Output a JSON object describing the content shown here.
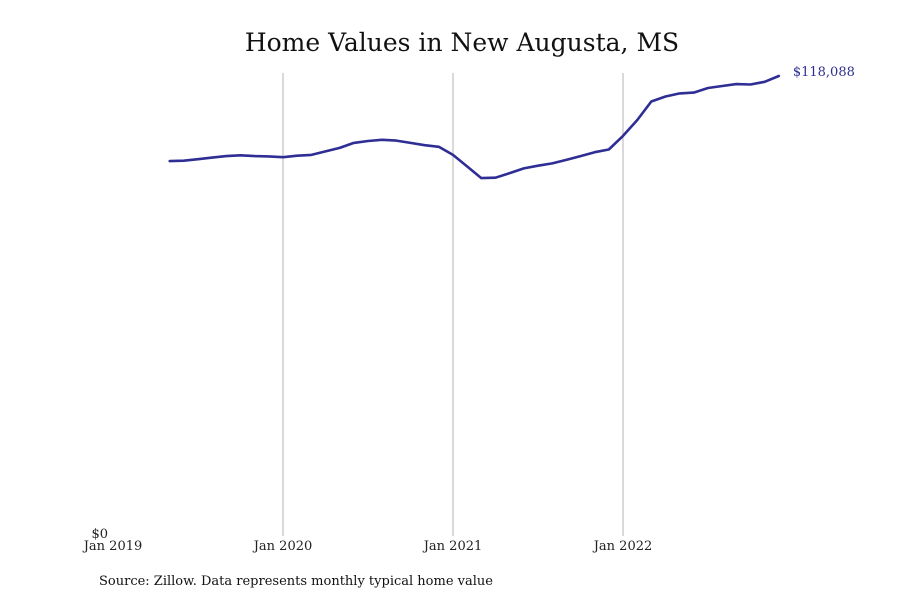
{
  "chart_data": {
    "type": "line",
    "title": "Home Values in New Augusta, MS",
    "source": "Source: Zillow. Data represents monthly typical home value",
    "xlabel": "",
    "ylabel": "",
    "x_ticks": [
      {
        "label": "Jan 2019",
        "date": "2019-01"
      },
      {
        "label": "Jan 2020",
        "date": "2020-01"
      },
      {
        "label": "Jan 2021",
        "date": "2021-01"
      },
      {
        "label": "Jan 2022",
        "date": "2022-01"
      }
    ],
    "y_ticks": [
      {
        "label": "$0",
        "value": 0
      }
    ],
    "ylim": [
      0,
      118088
    ],
    "grid": {
      "vertical": true,
      "horizontal": false
    },
    "line_color": "#2e2e94",
    "grid_color": "#b3b3b3",
    "end_label": "$118,088",
    "series": [
      {
        "points": [
          [
            "2019-05",
            96100
          ],
          [
            "2019-06",
            96200
          ],
          [
            "2019-07",
            96600
          ],
          [
            "2019-08",
            97000
          ],
          [
            "2019-09",
            97400
          ],
          [
            "2019-10",
            97600
          ],
          [
            "2019-11",
            97400
          ],
          [
            "2019-12",
            97300
          ],
          [
            "2020-01",
            97100
          ],
          [
            "2020-02",
            97500
          ],
          [
            "2020-03",
            97700
          ],
          [
            "2020-04",
            98600
          ],
          [
            "2020-05",
            99500
          ],
          [
            "2020-06",
            100800
          ],
          [
            "2020-07",
            101300
          ],
          [
            "2020-08",
            101600
          ],
          [
            "2020-09",
            101400
          ],
          [
            "2020-10",
            100800
          ],
          [
            "2020-11",
            100200
          ],
          [
            "2020-12",
            99800
          ],
          [
            "2021-01",
            97700
          ],
          [
            "2021-02",
            94700
          ],
          [
            "2021-03",
            91700
          ],
          [
            "2021-04",
            91800
          ],
          [
            "2021-05",
            93000
          ],
          [
            "2021-06",
            94200
          ],
          [
            "2021-07",
            94900
          ],
          [
            "2021-08",
            95500
          ],
          [
            "2021-09",
            96400
          ],
          [
            "2021-10",
            97400
          ],
          [
            "2021-11",
            98400
          ],
          [
            "2021-12",
            99100
          ],
          [
            "2022-01",
            102600
          ],
          [
            "2022-02",
            106700
          ],
          [
            "2022-03",
            111500
          ],
          [
            "2022-04",
            112800
          ],
          [
            "2022-05",
            113600
          ],
          [
            "2022-06",
            113800
          ],
          [
            "2022-07",
            115000
          ],
          [
            "2022-08",
            115500
          ],
          [
            "2022-09",
            116000
          ],
          [
            "2022-10",
            115900
          ],
          [
            "2022-11",
            116600
          ],
          [
            "2022-12",
            118088
          ]
        ]
      }
    ]
  }
}
